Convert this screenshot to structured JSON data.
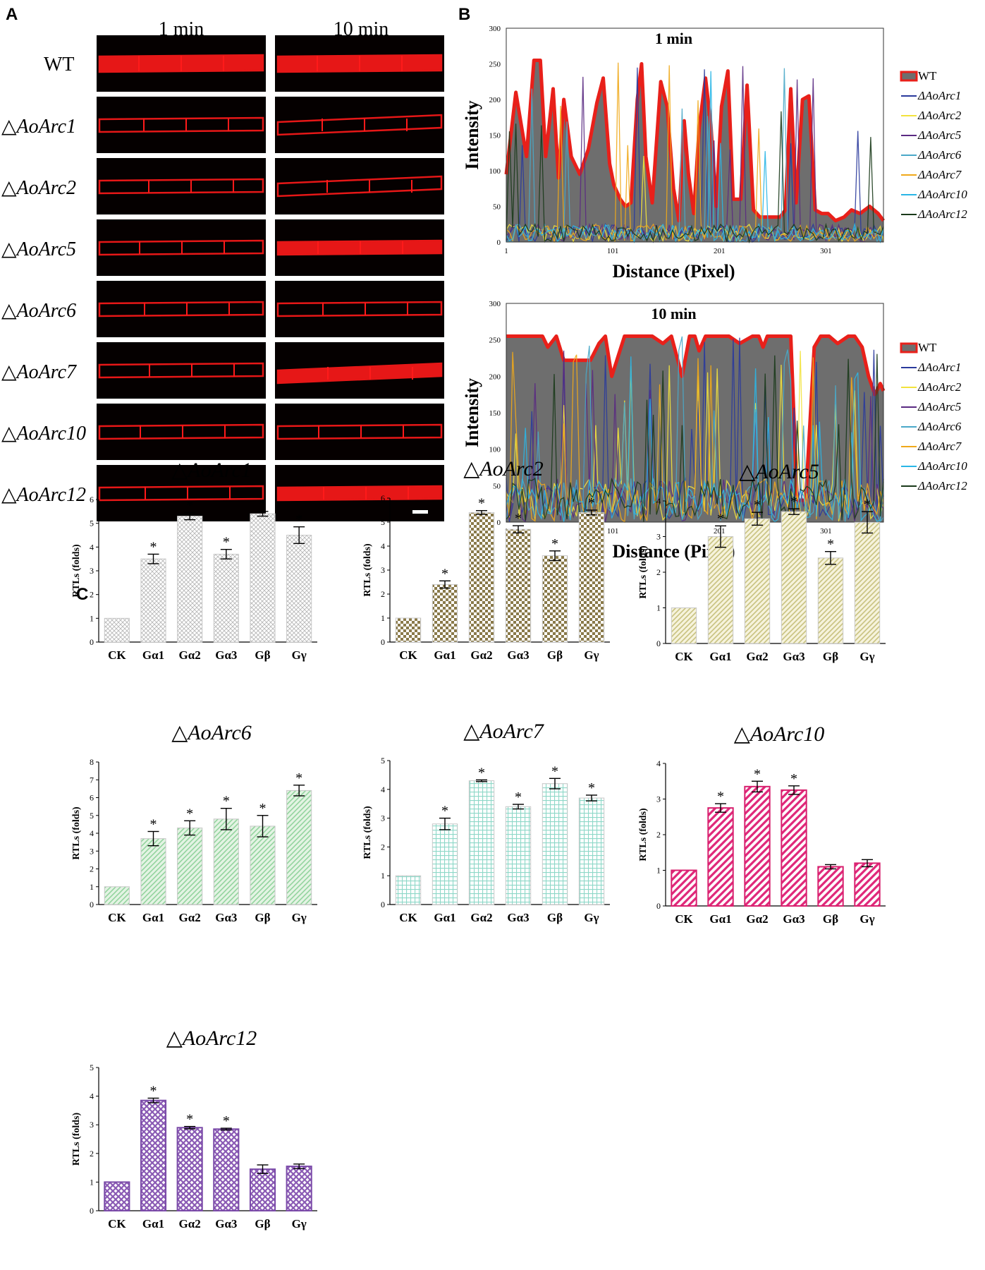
{
  "colors": {
    "cell": "#ff1a1a",
    "panel_bg": "#050000",
    "wt": "#e8201a",
    "wt_fill": "#6e6e6e",
    "arc1": "#2a3a9c",
    "arc2": "#f2e23c",
    "arc5": "#5a2a82",
    "arc6": "#4aa8c8",
    "arc7": "#f0a81a",
    "arc10": "#2ab6e6",
    "arc12": "#1a3a1a"
  },
  "panelA": {
    "letter": "A",
    "col_labels": [
      "1 min",
      "10 min"
    ],
    "row_labels": [
      "WT",
      "△AoArc1",
      "△AoArc2",
      "△AoArc5",
      "△AoArc6",
      "△AoArc7",
      "△AoArc10",
      "△AoArc12"
    ]
  },
  "panelB": {
    "letter": "B",
    "plots": [
      {
        "title": "1 min",
        "ylabel": "Intensity",
        "xlabel": "Distance (Pixel)",
        "yticks": [
          "0",
          "50",
          "100",
          "150",
          "200",
          "250",
          "300"
        ],
        "xticks": [
          "1",
          "101",
          "201",
          "301"
        ]
      },
      {
        "title": "10 min",
        "ylabel": "Intensity",
        "xlabel": "Distance (Pixel)",
        "yticks": [
          "0",
          "50",
          "100",
          "150",
          "200",
          "250",
          "300"
        ],
        "xticks": [
          "1",
          "101",
          "201",
          "301"
        ]
      }
    ],
    "legend": [
      "WT",
      "ΔAoArc1",
      "ΔAoArc2",
      "ΔAoArc5",
      "ΔAoArc6",
      "ΔAoArc7",
      "ΔAoArc10",
      "ΔAoArc12"
    ]
  },
  "panelC": {
    "letter": "C"
  },
  "chart_data": [
    {
      "type": "line",
      "title": "1 min",
      "xlabel": "Distance (Pixel)",
      "ylabel": "Intensity",
      "ylim": [
        0,
        300
      ],
      "xlim": [
        1,
        355
      ],
      "series": [
        {
          "name": "WT",
          "x": [
            1,
            10,
            20,
            27,
            33,
            38,
            45,
            50,
            55,
            62,
            70,
            78,
            86,
            92,
            98,
            102,
            108,
            113,
            118,
            124,
            128,
            132,
            138,
            146,
            152,
            158,
            163,
            168,
            172,
            177,
            182,
            188,
            193,
            198,
            203,
            209,
            214,
            221,
            227,
            233,
            239,
            246,
            252,
            258,
            263,
            268,
            273,
            279,
            285,
            291,
            297,
            303,
            310,
            318,
            325,
            333,
            342,
            350,
            355
          ],
          "y": [
            95,
            210,
            120,
            255,
            255,
            120,
            215,
            90,
            200,
            120,
            95,
            130,
            195,
            230,
            110,
            80,
            60,
            50,
            55,
            200,
            250,
            120,
            55,
            225,
            190,
            75,
            30,
            170,
            95,
            40,
            160,
            230,
            165,
            50,
            190,
            240,
            60,
            60,
            220,
            45,
            35,
            35,
            35,
            35,
            45,
            215,
            55,
            200,
            205,
            45,
            40,
            40,
            30,
            35,
            45,
            40,
            50,
            40,
            30
          ]
        }
      ]
    },
    {
      "type": "line",
      "title": "10 min",
      "xlabel": "Distance (Pixel)",
      "ylabel": "Intensity",
      "ylim": [
        0,
        300
      ],
      "xlim": [
        1,
        355
      ],
      "series": [
        {
          "name": "WT",
          "x": [
            1,
            35,
            40,
            48,
            55,
            80,
            88,
            94,
            100,
            112,
            118,
            138,
            148,
            156,
            166,
            173,
            178,
            182,
            188,
            192,
            200,
            210,
            220,
            232,
            238,
            242,
            246,
            252,
            262,
            268,
            274,
            282,
            290,
            296,
            304,
            312,
            322,
            328,
            335,
            341,
            347,
            352,
            355
          ],
          "y": [
            255,
            255,
            240,
            255,
            222,
            222,
            245,
            255,
            200,
            255,
            255,
            255,
            245,
            255,
            200,
            255,
            255,
            235,
            255,
            255,
            255,
            255,
            245,
            255,
            255,
            240,
            255,
            255,
            255,
            255,
            30,
            30,
            240,
            255,
            255,
            245,
            255,
            255,
            240,
            200,
            175,
            190,
            180
          ]
        }
      ]
    },
    {
      "type": "bar",
      "title": "△AoArc1",
      "categories": [
        "CK",
        "Gα1",
        "Gα2",
        "Gα3",
        "Gβ",
        "Gγ"
      ],
      "values": [
        1.0,
        3.5,
        5.3,
        3.7,
        5.4,
        4.5
      ],
      "errors": [
        0,
        0.2,
        0.15,
        0.2,
        0.1,
        0.35
      ],
      "significant": [
        false,
        true,
        true,
        true,
        true,
        true
      ],
      "ylabel": "RTLs (folds)",
      "ylim": [
        0,
        6
      ]
    },
    {
      "type": "bar",
      "title": "△AoArc2",
      "categories": [
        "CK",
        "Gα1",
        "Gα2",
        "Gα3",
        "Gβ",
        "Gγ"
      ],
      "values": [
        1.0,
        2.4,
        5.4,
        4.7,
        3.6,
        5.4
      ],
      "errors": [
        0,
        0.15,
        0.08,
        0.15,
        0.2,
        0.1
      ],
      "significant": [
        false,
        true,
        true,
        true,
        true,
        true
      ],
      "ylabel": "RTLs (folds)",
      "ylim": [
        0,
        6
      ]
    },
    {
      "type": "bar",
      "title": "△AoArc5",
      "categories": [
        "CK",
        "Gα1",
        "Gα2",
        "Gα3",
        "Gβ",
        "Gγ"
      ],
      "values": [
        1.0,
        3.0,
        3.5,
        3.7,
        2.4,
        3.4
      ],
      "errors": [
        0,
        0.3,
        0.18,
        0.08,
        0.18,
        0.3
      ],
      "significant": [
        false,
        true,
        true,
        true,
        true,
        true
      ],
      "ylabel": "RTLs (folds)",
      "ylim": [
        0,
        4
      ]
    },
    {
      "type": "bar",
      "title": "△AoArc6",
      "categories": [
        "CK",
        "Gα1",
        "Gα2",
        "Gα3",
        "Gβ",
        "Gγ"
      ],
      "values": [
        1.0,
        3.7,
        4.3,
        4.8,
        4.4,
        6.4
      ],
      "errors": [
        0,
        0.4,
        0.4,
        0.6,
        0.6,
        0.3
      ],
      "significant": [
        false,
        true,
        true,
        true,
        true,
        true
      ],
      "ylabel": "RTLs (folds)",
      "ylim": [
        0,
        8
      ]
    },
    {
      "type": "bar",
      "title": "△AoArc7",
      "categories": [
        "CK",
        "Gα1",
        "Gα2",
        "Gα3",
        "Gβ",
        "Gγ"
      ],
      "values": [
        1.0,
        2.8,
        4.3,
        3.4,
        4.2,
        3.7
      ],
      "errors": [
        0,
        0.2,
        0.03,
        0.08,
        0.18,
        0.1
      ],
      "significant": [
        false,
        true,
        true,
        true,
        true,
        true
      ],
      "ylabel": "RTLs (folds)",
      "ylim": [
        0,
        5
      ]
    },
    {
      "type": "bar",
      "title": "△AoArc10",
      "categories": [
        "CK",
        "Gα1",
        "Gα2",
        "Gα3",
        "Gβ",
        "Gγ"
      ],
      "values": [
        1.0,
        2.75,
        3.35,
        3.25,
        1.1,
        1.2
      ],
      "errors": [
        0,
        0.12,
        0.15,
        0.12,
        0.06,
        0.1
      ],
      "significant": [
        false,
        true,
        true,
        true,
        false,
        false
      ],
      "ylabel": "RTLs (folds)",
      "ylim": [
        0,
        4
      ]
    },
    {
      "type": "bar",
      "title": "△AoArc12",
      "categories": [
        "CK",
        "Gα1",
        "Gα2",
        "Gα3",
        "Gβ",
        "Gγ"
      ],
      "values": [
        1.0,
        3.85,
        2.9,
        2.85,
        1.45,
        1.55
      ],
      "errors": [
        0,
        0.08,
        0.04,
        0.03,
        0.15,
        0.08
      ],
      "significant": [
        false,
        true,
        true,
        true,
        false,
        false
      ],
      "ylabel": "RTLs (folds)",
      "ylim": [
        0,
        5
      ]
    }
  ]
}
